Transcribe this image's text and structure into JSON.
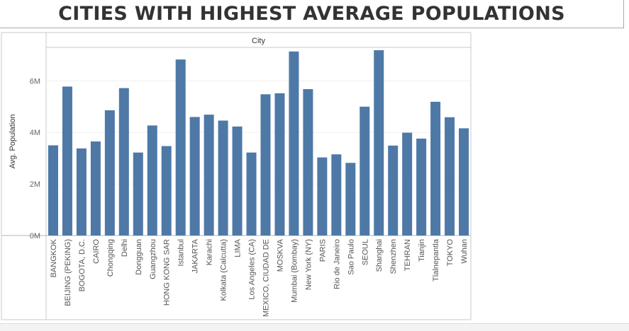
{
  "title": "CITIES WITH HIGHEST AVERAGE POPULATIONS",
  "chart_data": {
    "type": "bar",
    "column_header": "City",
    "ylabel": "Avg. Population",
    "ylim": [
      0,
      7300000
    ],
    "yticks": [
      0,
      2000000,
      4000000,
      6000000
    ],
    "ytick_labels": [
      "0M",
      "2M",
      "4M",
      "6M"
    ],
    "bar_color": "#4e79a7",
    "grid": true,
    "categories": [
      "BANGKOK",
      "BEIJING (PEKING)",
      "BOGOTA, D.C.",
      "CAIRO",
      "Chongqing",
      "Delhi",
      "Dongguan",
      "Guangzhou",
      "HONG KONG SAR",
      "Istanbul",
      "JAKARTA",
      "Karachi",
      "Kolkata (Calcutta)",
      "LIMA",
      "Los Angeles (CA)",
      "MEXICO, CIUDAD DE",
      "MOSKVA",
      "Mumbai (Bombay)",
      "New York (NY)",
      "PARIS",
      "Rio de Janeiro",
      "Sao Paulo",
      "SEOUL",
      "Shanghai",
      "Shenzhen",
      "TEHRAN",
      "Tianjin",
      "Tlalnepantla",
      "TOKYO",
      "Wuhan"
    ],
    "values": [
      3500000,
      5780000,
      3380000,
      3650000,
      4860000,
      5720000,
      3220000,
      4270000,
      3470000,
      6830000,
      4600000,
      4690000,
      4460000,
      4230000,
      3220000,
      5480000,
      5520000,
      7140000,
      5680000,
      3030000,
      3150000,
      2820000,
      5000000,
      7190000,
      3490000,
      3990000,
      3760000,
      5190000,
      4590000,
      4160000
    ]
  }
}
